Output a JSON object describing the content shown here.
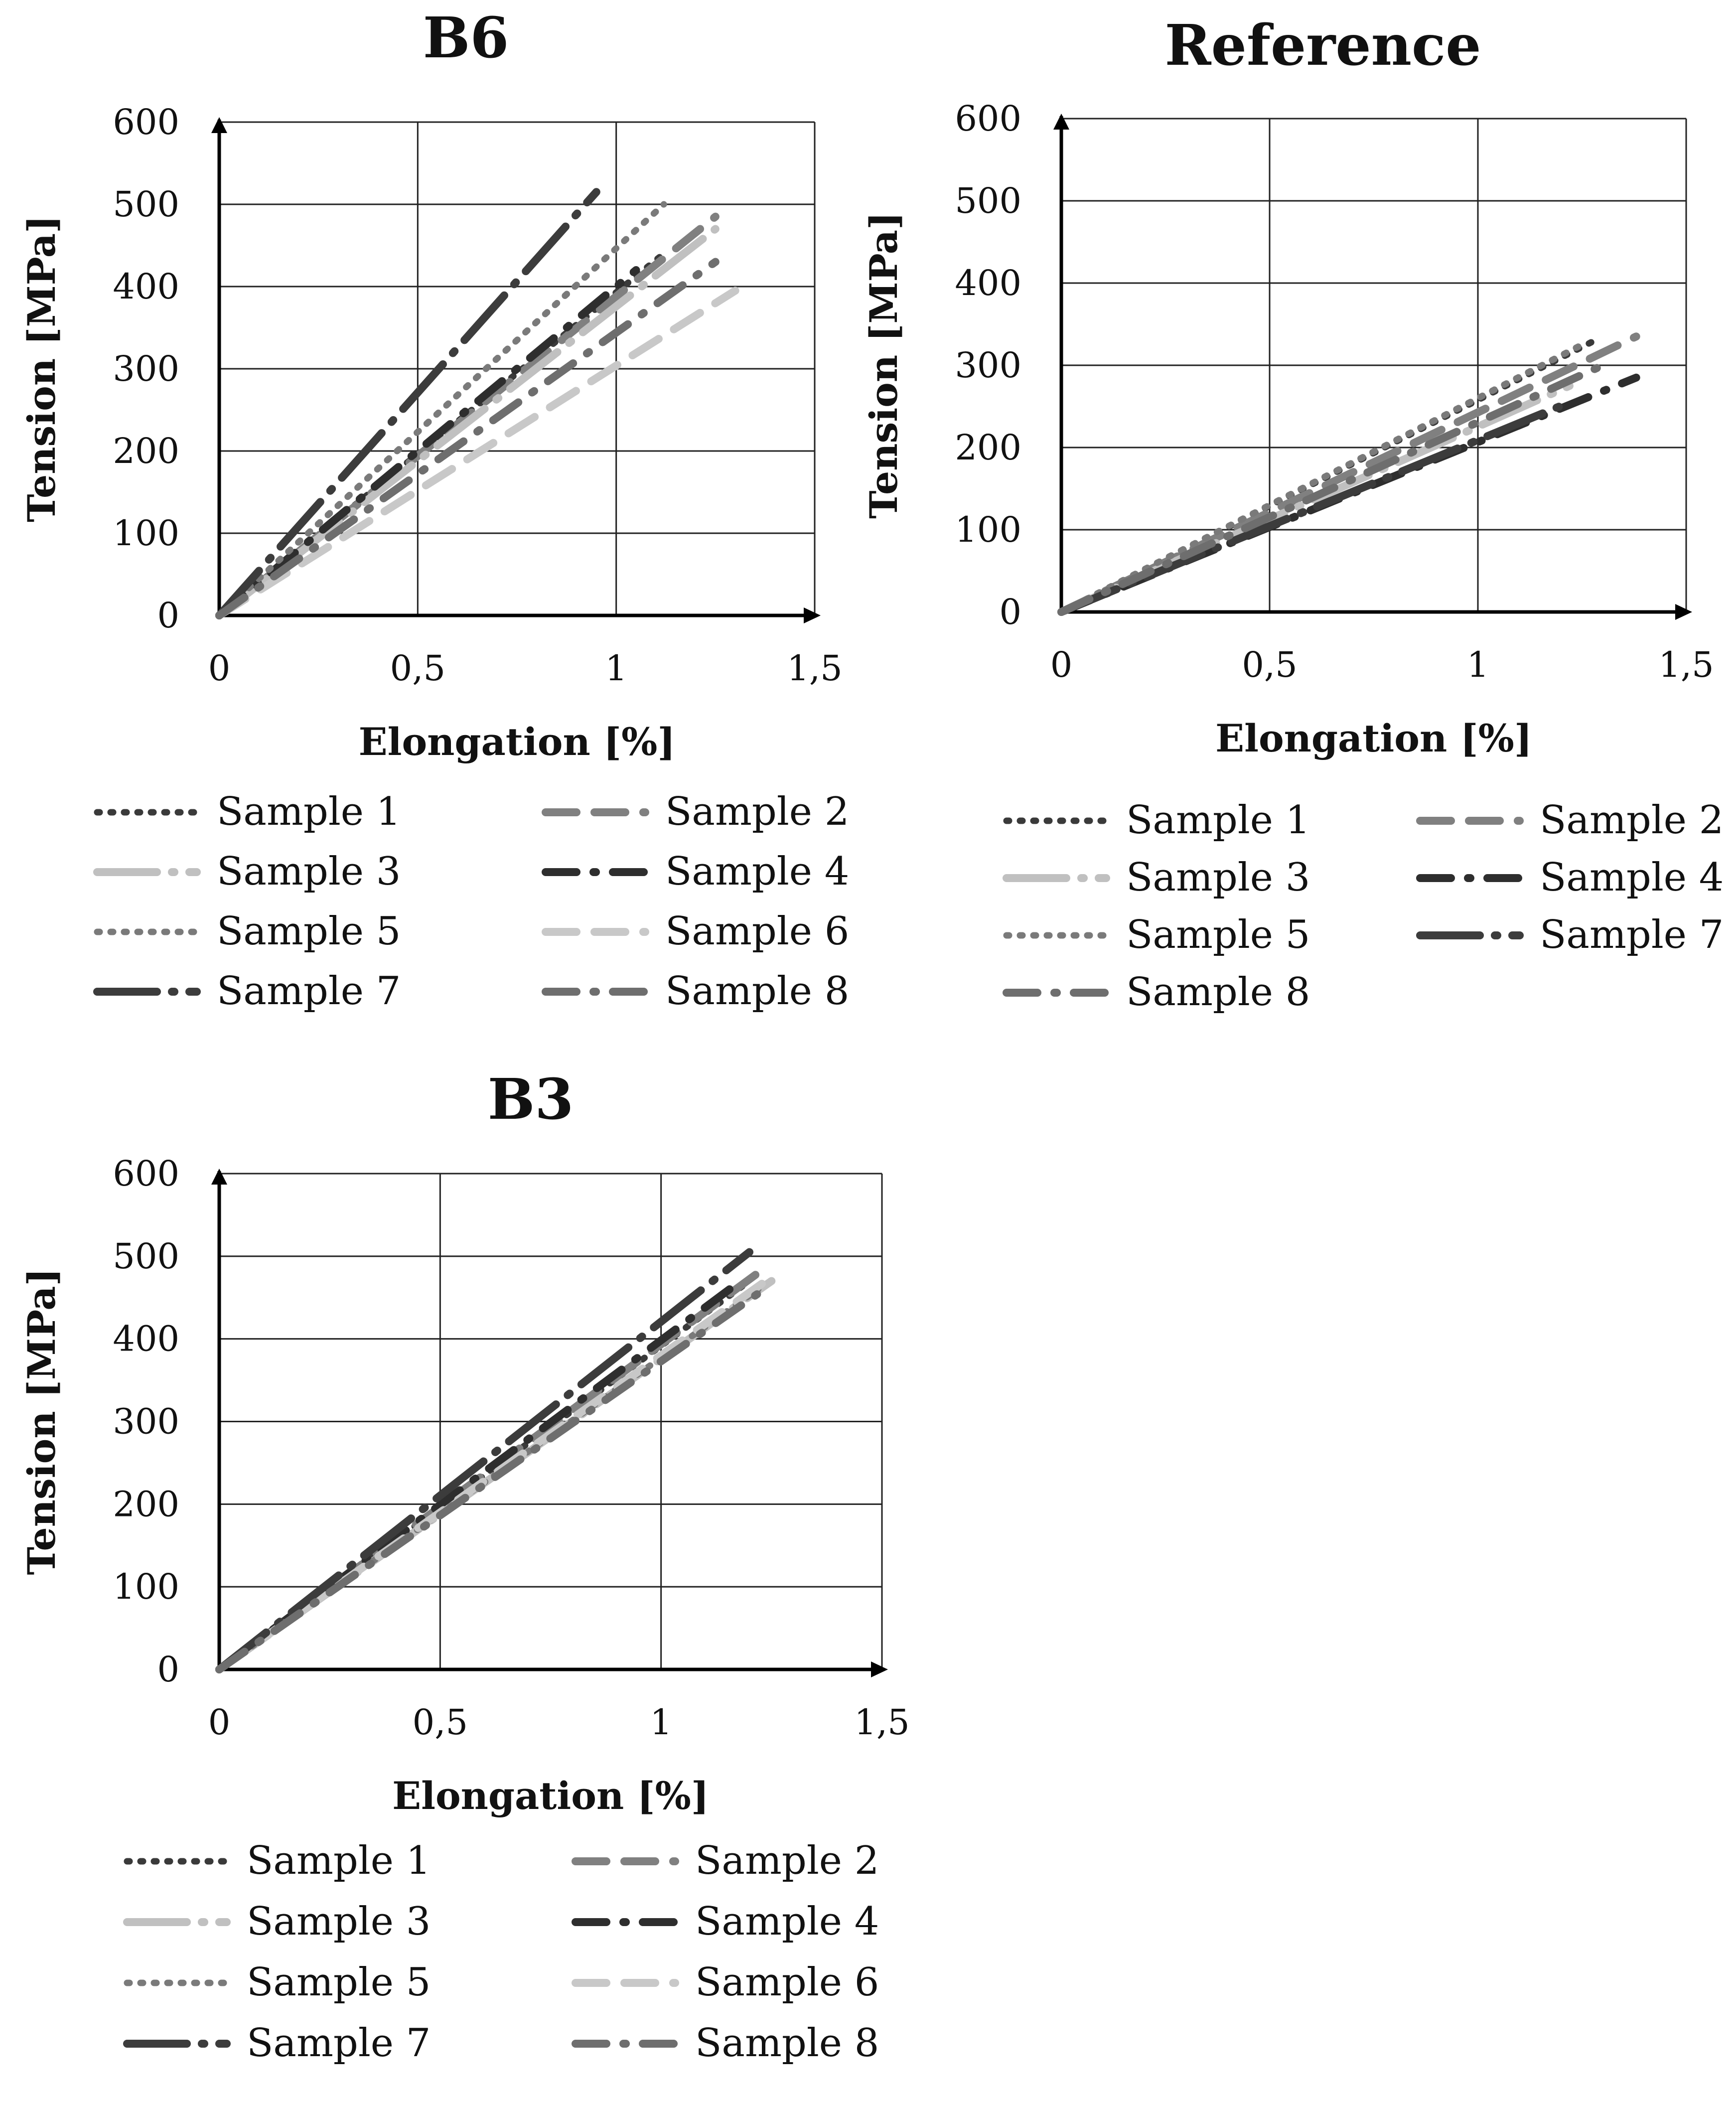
{
  "chart_data": [
    {
      "type": "line",
      "title": "B6",
      "xlabel": "Elongation [%]",
      "ylabel": "Tension [MPa]",
      "xlim": [
        0,
        1.5
      ],
      "ylim": [
        0,
        600
      ],
      "x_ticks": [
        "0",
        "0,5",
        "1",
        "1,5"
      ],
      "y_ticks": [
        "0",
        "100",
        "200",
        "300",
        "400",
        "500",
        "600"
      ],
      "grid": true,
      "legend_position": "bottom",
      "series": [
        {
          "name": "Sample 1",
          "x": [
            0,
            1.12
          ],
          "y": [
            0,
            440
          ],
          "color": "#3a3a3a",
          "style": "dotted"
        },
        {
          "name": "Sample 2",
          "x": [
            0,
            1.25
          ],
          "y": [
            0,
            485
          ],
          "color": "#808080",
          "style": "dashed"
        },
        {
          "name": "Sample 3",
          "x": [
            0,
            1.25
          ],
          "y": [
            0,
            470
          ],
          "color": "#c0c0c0",
          "style": "longdash-dot"
        },
        {
          "name": "Sample 4",
          "x": [
            0,
            1.05
          ],
          "y": [
            0,
            420
          ],
          "color": "#2e2e2e",
          "style": "dash-dot"
        },
        {
          "name": "Sample 5",
          "x": [
            0,
            1.12
          ],
          "y": [
            0,
            500
          ],
          "color": "#7a7a7a",
          "style": "dotted"
        },
        {
          "name": "Sample 6",
          "x": [
            0,
            1.3
          ],
          "y": [
            0,
            395
          ],
          "color": "#c8c8c8",
          "style": "dashed"
        },
        {
          "name": "Sample 7",
          "x": [
            0,
            0.95
          ],
          "y": [
            0,
            515
          ],
          "color": "#3c3c3c",
          "style": "longdash-dot"
        },
        {
          "name": "Sample 8",
          "x": [
            0,
            1.25
          ],
          "y": [
            0,
            430
          ],
          "color": "#6e6e6e",
          "style": "dash-dot"
        }
      ]
    },
    {
      "type": "line",
      "title": "Reference",
      "xlabel": "Elongation [%]",
      "ylabel": "Tension [MPa]",
      "xlim": [
        0,
        1.5
      ],
      "ylim": [
        0,
        600
      ],
      "x_ticks": [
        "0",
        "0,5",
        "1",
        "1,5"
      ],
      "y_ticks": [
        "0",
        "100",
        "200",
        "300",
        "400",
        "500",
        "600"
      ],
      "grid": true,
      "legend_position": "bottom",
      "series": [
        {
          "name": "Sample 1",
          "x": [
            0,
            1.28
          ],
          "y": [
            0,
            330
          ],
          "color": "#3a3a3a",
          "style": "dotted"
        },
        {
          "name": "Sample 2",
          "x": [
            0,
            1.38
          ],
          "y": [
            0,
            335
          ],
          "color": "#808080",
          "style": "dashed"
        },
        {
          "name": "Sample 3",
          "x": [
            0,
            1.22
          ],
          "y": [
            0,
            275
          ],
          "color": "#c0c0c0",
          "style": "longdash-dot"
        },
        {
          "name": "Sample 4",
          "x": [
            0,
            1.38
          ],
          "y": [
            0,
            285
          ],
          "color": "#2e2e2e",
          "style": "dash-dot"
        },
        {
          "name": "Sample 5",
          "x": [
            0,
            1.25
          ],
          "y": [
            0,
            325
          ],
          "color": "#7a7a7a",
          "style": "dotted"
        },
        {
          "name": "Sample 7",
          "x": [
            0,
            1.22
          ],
          "y": [
            0,
            255
          ],
          "color": "#3c3c3c",
          "style": "longdash-dot"
        },
        {
          "name": "Sample 8",
          "x": [
            0,
            1.3
          ],
          "y": [
            0,
            300
          ],
          "color": "#6e6e6e",
          "style": "dash-dot"
        }
      ]
    },
    {
      "type": "line",
      "title": "B3",
      "xlabel": "Elongation [%]",
      "ylabel": "Tension [MPa]",
      "xlim": [
        0,
        1.5
      ],
      "ylim": [
        0,
        600
      ],
      "x_ticks": [
        "0",
        "0,5",
        "1",
        "1,5"
      ],
      "y_ticks": [
        "0",
        "100",
        "200",
        "300",
        "400",
        "500",
        "600"
      ],
      "grid": true,
      "legend_position": "bottom",
      "series": [
        {
          "name": "Sample 1",
          "x": [
            0,
            1.2
          ],
          "y": [
            0,
            470
          ],
          "color": "#3a3a3a",
          "style": "dotted"
        },
        {
          "name": "Sample 2",
          "x": [
            0,
            1.22
          ],
          "y": [
            0,
            480
          ],
          "color": "#808080",
          "style": "dashed"
        },
        {
          "name": "Sample 3",
          "x": [
            0,
            1.25
          ],
          "y": [
            0,
            470
          ],
          "color": "#c0c0c0",
          "style": "longdash-dot"
        },
        {
          "name": "Sample 4",
          "x": [
            0,
            1.18
          ],
          "y": [
            0,
            470
          ],
          "color": "#2e2e2e",
          "style": "dash-dot"
        },
        {
          "name": "Sample 5",
          "x": [
            0,
            1.22
          ],
          "y": [
            0,
            460
          ],
          "color": "#7a7a7a",
          "style": "dotted"
        },
        {
          "name": "Sample 6",
          "x": [
            0,
            1.25
          ],
          "y": [
            0,
            475
          ],
          "color": "#c8c8c8",
          "style": "dashed"
        },
        {
          "name": "Sample 7",
          "x": [
            0,
            1.2
          ],
          "y": [
            0,
            505
          ],
          "color": "#3c3c3c",
          "style": "longdash-dot"
        },
        {
          "name": "Sample 8",
          "x": [
            0,
            1.22
          ],
          "y": [
            0,
            455
          ],
          "color": "#6e6e6e",
          "style": "dash-dot"
        }
      ]
    }
  ]
}
